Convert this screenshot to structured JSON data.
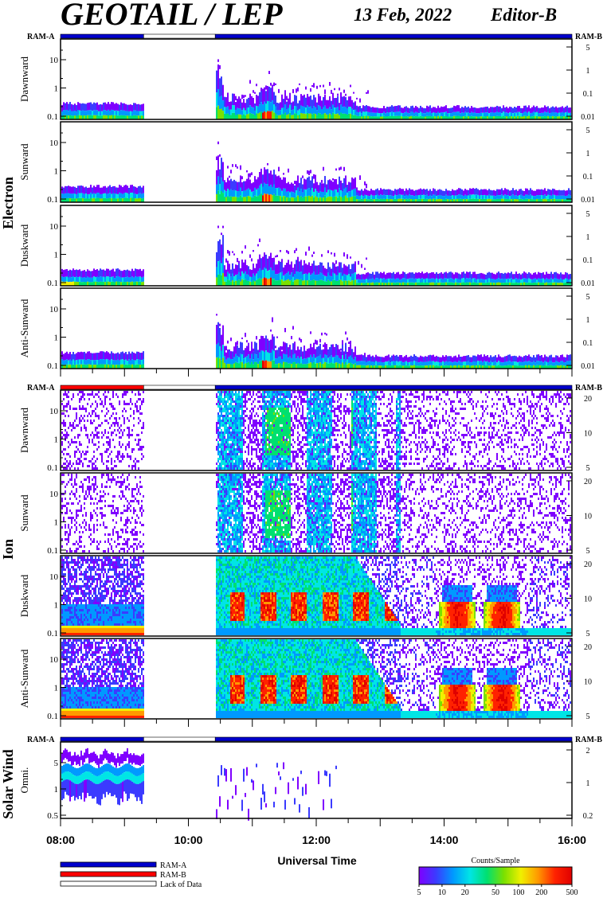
{
  "header": {
    "title": "GEOTAIL / LEP",
    "date": "13 Feb, 2022",
    "editor": "Editor-B"
  },
  "colors": {
    "ram_a": "#0000cc",
    "ram_b": "#ff0000",
    "lack": "#ffffff",
    "scale": [
      "#7f00ff",
      "#3b3bff",
      "#0099ff",
      "#00e5e5",
      "#00e070",
      "#7be000",
      "#f0f000",
      "#ff9900",
      "#ff2200",
      "#e00000"
    ]
  },
  "chart_data": {
    "type": "heatmap",
    "xlabel": "Universal Time",
    "x_ticks": [
      "08:00",
      "10:00",
      "12:00",
      "14:00",
      "16:00"
    ],
    "x_range_hours": [
      8,
      16
    ],
    "data_gap_hours": [
      9.3,
      10.42
    ],
    "status_bars": [
      {
        "label_left": "RAM-A",
        "label_right": "RAM-B",
        "segments": [
          {
            "from": 8,
            "to": 9.3,
            "mode": "ram_a"
          },
          {
            "from": 9.3,
            "to": 10.42,
            "mode": "lack"
          },
          {
            "from": 10.42,
            "to": 16,
            "mode": "ram_a"
          }
        ]
      },
      {
        "label_left": "RAM-A",
        "label_right": "RAM-B",
        "segments": [
          {
            "from": 8,
            "to": 9.3,
            "mode": "ram_b"
          },
          {
            "from": 9.3,
            "to": 10.42,
            "mode": "lack"
          },
          {
            "from": 10.42,
            "to": 16,
            "mode": "ram_a"
          }
        ]
      },
      {
        "label_left": "RAM-A",
        "label_right": "RAM-B",
        "segments": [
          {
            "from": 8,
            "to": 9.3,
            "mode": "ram_a"
          },
          {
            "from": 9.3,
            "to": 10.42,
            "mode": "lack"
          },
          {
            "from": 10.42,
            "to": 16,
            "mode": "ram_a"
          }
        ]
      }
    ],
    "groups": [
      {
        "name": "Electron",
        "panels": [
          {
            "label": "Dawnward",
            "left_ticks": [
              "10",
              "1",
              "0.1"
            ],
            "right_ticks": [
              "5",
              "1",
              "0.1",
              "0.01"
            ]
          },
          {
            "label": "Sunward",
            "left_ticks": [
              "10",
              "1",
              "0.1"
            ],
            "right_ticks": [
              "5",
              "1",
              "0.1",
              "0.01"
            ]
          },
          {
            "label": "Duskward",
            "left_ticks": [
              "10",
              "1",
              "0.1"
            ],
            "right_ticks": [
              "5",
              "1",
              "0.1",
              "0.01"
            ]
          },
          {
            "label": "Anti-Sunward",
            "left_ticks": [
              "10",
              "1",
              "0.1"
            ],
            "right_ticks": [
              "5",
              "1",
              "0.1",
              "0.01"
            ]
          }
        ]
      },
      {
        "name": "Ion",
        "panels": [
          {
            "label": "Dawnward",
            "left_ticks": [
              "10",
              "1",
              "0.1"
            ],
            "right_ticks": [
              "20",
              "10",
              "5"
            ]
          },
          {
            "label": "Sunward",
            "left_ticks": [
              "10",
              "1",
              "0.1"
            ],
            "right_ticks": [
              "20",
              "10",
              "5"
            ]
          },
          {
            "label": "Duskward",
            "left_ticks": [
              "10",
              "1",
              "0.1"
            ],
            "right_ticks": [
              "20",
              "10",
              "5"
            ]
          },
          {
            "label": "Anti-Sunward",
            "left_ticks": [
              "10",
              "1",
              "0.1"
            ],
            "right_ticks": [
              "20",
              "10",
              "5"
            ]
          }
        ]
      },
      {
        "name": "Solar Wind",
        "panels": [
          {
            "label": "Omni.",
            "left_ticks": [
              "5",
              "1",
              "0.5"
            ],
            "right_ticks": [
              "2",
              "1",
              "0.2"
            ]
          }
        ]
      }
    ],
    "legend": [
      {
        "mode": "ram_a",
        "label": "RAM-A"
      },
      {
        "mode": "ram_b",
        "label": "RAM-B"
      },
      {
        "mode": "lack",
        "label": "Lack of Data"
      }
    ],
    "colorbar": {
      "title": "Counts/Sample",
      "ticks": [
        "5",
        "10",
        "20",
        "50",
        "100",
        "200",
        "500"
      ],
      "values": [
        5,
        10,
        20,
        50,
        100,
        200,
        500
      ],
      "range": [
        5,
        500
      ],
      "scale": "log"
    }
  }
}
